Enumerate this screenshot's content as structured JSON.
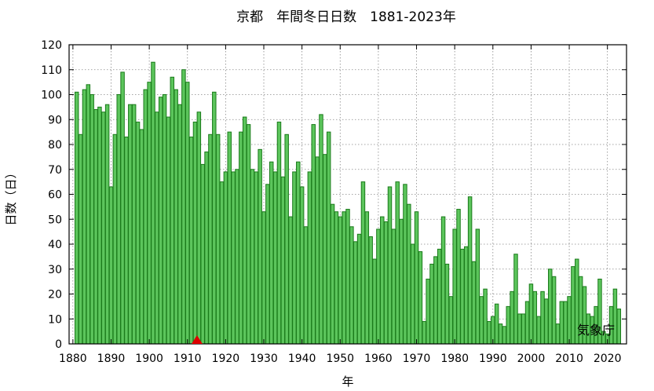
{
  "chart_data": {
    "type": "bar",
    "title": "京都　年間冬日日数　1881-2023年",
    "xlabel": "年",
    "ylabel": "日数（日）",
    "credit": "気象庁",
    "ylim": [
      0,
      120
    ],
    "xlim": [
      1879,
      2025
    ],
    "y_ticks": [
      0,
      10,
      20,
      30,
      40,
      50,
      60,
      70,
      80,
      90,
      100,
      110,
      120
    ],
    "x_ticks": [
      1880,
      1890,
      1900,
      1910,
      1920,
      1930,
      1940,
      1950,
      1960,
      1970,
      1980,
      1990,
      2000,
      2010,
      2020
    ],
    "grid": true,
    "marker": {
      "year": 1912.5,
      "shape": "triangle",
      "color": "#dd0000"
    },
    "colors": {
      "bar_fill": "#5cc55c",
      "bar_stroke": "#1a7a1a"
    },
    "x": [
      1881,
      1882,
      1883,
      1884,
      1885,
      1886,
      1887,
      1888,
      1889,
      1890,
      1891,
      1892,
      1893,
      1894,
      1895,
      1896,
      1897,
      1898,
      1899,
      1900,
      1901,
      1902,
      1903,
      1904,
      1905,
      1906,
      1907,
      1908,
      1909,
      1910,
      1911,
      1912,
      1913,
      1914,
      1915,
      1916,
      1917,
      1918,
      1919,
      1920,
      1921,
      1922,
      1923,
      1924,
      1925,
      1926,
      1927,
      1928,
      1929,
      1930,
      1931,
      1932,
      1933,
      1934,
      1935,
      1936,
      1937,
      1938,
      1939,
      1940,
      1941,
      1942,
      1943,
      1944,
      1945,
      1946,
      1947,
      1948,
      1949,
      1950,
      1951,
      1952,
      1953,
      1954,
      1955,
      1956,
      1957,
      1958,
      1959,
      1960,
      1961,
      1962,
      1963,
      1964,
      1965,
      1966,
      1967,
      1968,
      1969,
      1970,
      1971,
      1972,
      1973,
      1974,
      1975,
      1976,
      1977,
      1978,
      1979,
      1980,
      1981,
      1982,
      1983,
      1984,
      1985,
      1986,
      1987,
      1988,
      1989,
      1990,
      1991,
      1992,
      1993,
      1994,
      1995,
      1996,
      1997,
      1998,
      1999,
      2000,
      2001,
      2002,
      2003,
      2004,
      2005,
      2006,
      2007,
      2008,
      2009,
      2010,
      2011,
      2012,
      2013,
      2014,
      2015,
      2016,
      2017,
      2018,
      2019,
      2020,
      2021,
      2022,
      2023
    ],
    "values": [
      101,
      84,
      102,
      104,
      100,
      94,
      95,
      93,
      96,
      63,
      84,
      100,
      109,
      83,
      96,
      96,
      89,
      86,
      102,
      105,
      113,
      93,
      99,
      100,
      91,
      107,
      102,
      96,
      110,
      105,
      83,
      89,
      93,
      72,
      77,
      84,
      101,
      84,
      65,
      69,
      85,
      69,
      70,
      85,
      91,
      88,
      70,
      69,
      78,
      53,
      64,
      73,
      69,
      89,
      67,
      84,
      51,
      69,
      73,
      63,
      47,
      69,
      88,
      75,
      92,
      76,
      85,
      56,
      53,
      51,
      53,
      54,
      47,
      41,
      44,
      65,
      53,
      43,
      34,
      46,
      51,
      49,
      63,
      46,
      65,
      50,
      64,
      56,
      40,
      53,
      37,
      9,
      26,
      32,
      35,
      38,
      51,
      32,
      19,
      46,
      54,
      38,
      39,
      59,
      33,
      46,
      19,
      22,
      9,
      11,
      16,
      8,
      7,
      15,
      21,
      36,
      12,
      12,
      17,
      24,
      21,
      11,
      21,
      18,
      30,
      27,
      8,
      17,
      17,
      19,
      31,
      34,
      27,
      23,
      12,
      11,
      15,
      26,
      5,
      4,
      15,
      22,
      14
    ]
  }
}
